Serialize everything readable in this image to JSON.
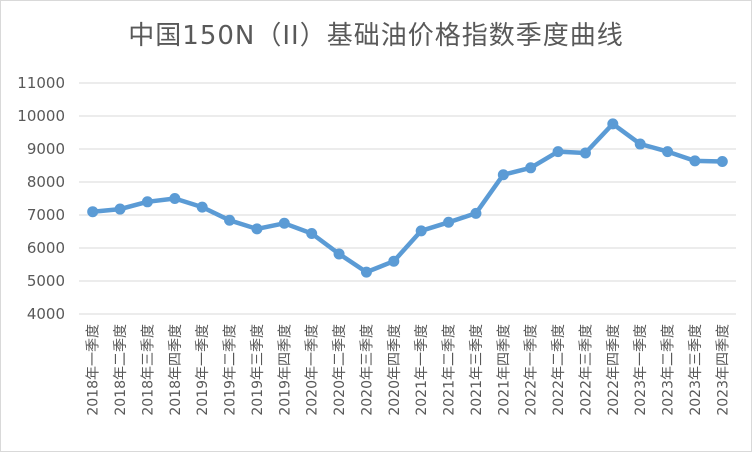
{
  "chart_data": {
    "type": "line",
    "title": "中国150N（II）基础油价格指数季度曲线",
    "xlabel": "",
    "ylabel": "",
    "ylim": [
      4000,
      11000
    ],
    "yticks": [
      4000,
      5000,
      6000,
      7000,
      8000,
      9000,
      10000,
      11000
    ],
    "grid": true,
    "legend": "none",
    "line_color": "#5b9bd5",
    "categories": [
      "2018年一季度",
      "2018年二季度",
      "2018年三季度",
      "2018年四季度",
      "2019年一季度",
      "2019年二季度",
      "2019年三季度",
      "2019年四季度",
      "2020年一季度",
      "2020年二季度",
      "2020年三季度",
      "2020年四季度",
      "2021年一季度",
      "2021年二季度",
      "2021年三季度",
      "2021年四季度",
      "2022年一季度",
      "2022年二季度",
      "2022年三季度",
      "2022年四季度",
      "2023年一季度",
      "2023年二季度",
      "2023年三季度",
      "2023年四季度"
    ],
    "series": [
      {
        "values": [
          7100,
          7180,
          7400,
          7500,
          7240,
          6840,
          6580,
          6750,
          6440,
          5820,
          5270,
          5600,
          6520,
          6780,
          7050,
          8220,
          8430,
          8920,
          8880,
          9760,
          9150,
          8920,
          8640,
          8620
        ]
      }
    ]
  }
}
